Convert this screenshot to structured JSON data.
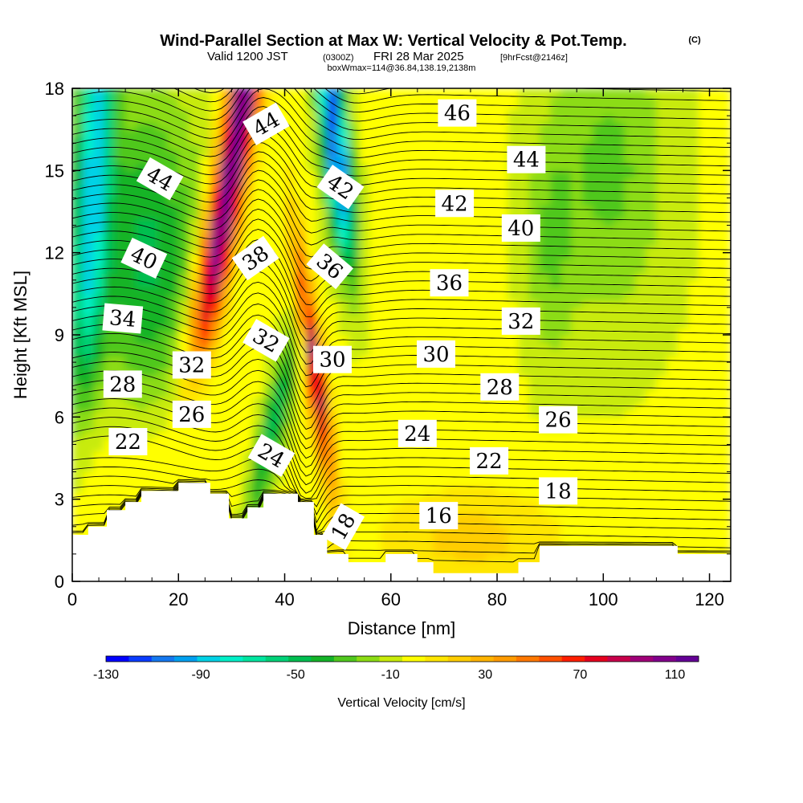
{
  "figure": {
    "title": "Wind-Parallel Section at Max W: Vertical Velocity & Pot.Temp.",
    "title_mark": "(C)",
    "subtitle_a": "Valid 1200 JST",
    "subtitle_b": "(0300Z)",
    "subtitle_c": "FRI 28 Mar 2025",
    "subtitle_d": "[9hrFcst@2146z]",
    "subtitle_line3": "boxWmax=114@36.84,138.19,2138m"
  },
  "chart_data": {
    "type": "heatmap",
    "xlabel": "Distance [nm]",
    "ylabel": "Height [Kft MSL]",
    "xlim": [
      0,
      124
    ],
    "ylim": [
      0,
      18
    ],
    "x_ticks": [
      "0",
      "20",
      "40",
      "60",
      "80",
      "100",
      "120"
    ],
    "y_ticks": [
      "0",
      "3",
      "6",
      "9",
      "12",
      "15",
      "18"
    ],
    "grid": false,
    "colorbar": {
      "label": "Vertical Velocity [cm/s]",
      "range": [
        -130,
        120
      ],
      "step": 10,
      "tick_labels": [
        "-130",
        "-90",
        "-50",
        "-10",
        "30",
        "70",
        "110"
      ],
      "colors": [
        "#0000ff",
        "#0a3cff",
        "#1478f0",
        "#00a0f0",
        "#00d2e6",
        "#00f0c8",
        "#00e6a0",
        "#00d278",
        "#00be50",
        "#14b428",
        "#50c81e",
        "#8cdc14",
        "#c8eb0a",
        "#ffff00",
        "#ffe600",
        "#ffcd00",
        "#ffb400",
        "#ff9b00",
        "#ff7800",
        "#ff5000",
        "#ff1e00",
        "#e6001e",
        "#c8004b",
        "#a00078",
        "#82008c",
        "#640096"
      ]
    },
    "terrain_height_kft": [
      {
        "x": 0,
        "h": 1.7
      },
      {
        "x": 3,
        "h": 2.0
      },
      {
        "x": 6.5,
        "h": 2.6
      },
      {
        "x": 10,
        "h": 2.9
      },
      {
        "x": 13,
        "h": 3.3
      },
      {
        "x": 20,
        "h": 3.6
      },
      {
        "x": 26,
        "h": 3.2
      },
      {
        "x": 29.5,
        "h": 2.3
      },
      {
        "x": 33,
        "h": 2.7
      },
      {
        "x": 36,
        "h": 3.2
      },
      {
        "x": 42.5,
        "h": 2.9
      },
      {
        "x": 45.5,
        "h": 1.7
      },
      {
        "x": 48,
        "h": 1.0
      },
      {
        "x": 52,
        "h": 0.7
      },
      {
        "x": 59,
        "h": 1.0
      },
      {
        "x": 65,
        "h": 0.7
      },
      {
        "x": 68,
        "h": 0.3
      },
      {
        "x": 84,
        "h": 0.7
      },
      {
        "x": 88,
        "h": 1.3
      },
      {
        "x": 114,
        "h": 1.0
      },
      {
        "x": 124,
        "h": 1.0
      }
    ],
    "theta_contours_C": [
      16,
      18,
      22,
      24,
      26,
      28,
      30,
      32,
      34,
      36,
      38,
      40,
      42,
      44,
      46
    ],
    "contour_labels": [
      {
        "text": "44",
        "x": 36.5,
        "y": 16.7,
        "angle": -30
      },
      {
        "text": "44",
        "x": 16.5,
        "y": 14.7,
        "angle": 30
      },
      {
        "text": "42",
        "x": 50.5,
        "y": 14.4,
        "angle": 35
      },
      {
        "text": "46",
        "x": 72.5,
        "y": 17.1,
        "angle": 0
      },
      {
        "text": "44",
        "x": 85.5,
        "y": 15.4,
        "angle": 0
      },
      {
        "text": "42",
        "x": 72,
        "y": 13.8,
        "angle": 0
      },
      {
        "text": "40",
        "x": 84.5,
        "y": 12.9,
        "angle": 0
      },
      {
        "text": "40",
        "x": 13.5,
        "y": 11.8,
        "angle": 25
      },
      {
        "text": "38",
        "x": 34.5,
        "y": 11.8,
        "angle": -35
      },
      {
        "text": "36",
        "x": 48.5,
        "y": 11.5,
        "angle": 40
      },
      {
        "text": "36",
        "x": 71,
        "y": 10.9,
        "angle": 0
      },
      {
        "text": "34",
        "x": 9.5,
        "y": 9.6,
        "angle": 5
      },
      {
        "text": "32",
        "x": 84.5,
        "y": 9.5,
        "angle": 0
      },
      {
        "text": "32",
        "x": 36.5,
        "y": 8.8,
        "angle": 30
      },
      {
        "text": "30",
        "x": 49,
        "y": 8.1,
        "angle": 0
      },
      {
        "text": "30",
        "x": 68.5,
        "y": 8.3,
        "angle": 0
      },
      {
        "text": "32",
        "x": 22.5,
        "y": 7.9,
        "angle": 0
      },
      {
        "text": "28",
        "x": 9.5,
        "y": 7.2,
        "angle": 0
      },
      {
        "text": "28",
        "x": 80.5,
        "y": 7.1,
        "angle": 0
      },
      {
        "text": "26",
        "x": 22.5,
        "y": 6.1,
        "angle": 0
      },
      {
        "text": "26",
        "x": 91.5,
        "y": 5.9,
        "angle": 0
      },
      {
        "text": "22",
        "x": 10.5,
        "y": 5.1,
        "angle": 0
      },
      {
        "text": "24",
        "x": 65,
        "y": 5.4,
        "angle": 0
      },
      {
        "text": "24",
        "x": 37.5,
        "y": 4.6,
        "angle": 30
      },
      {
        "text": "22",
        "x": 78.5,
        "y": 4.4,
        "angle": 0
      },
      {
        "text": "18",
        "x": 91.5,
        "y": 3.3,
        "angle": 0
      },
      {
        "text": "16",
        "x": 69,
        "y": 2.4,
        "angle": 0
      },
      {
        "text": "18",
        "x": 51,
        "y": 2.0,
        "angle": -60
      }
    ]
  }
}
